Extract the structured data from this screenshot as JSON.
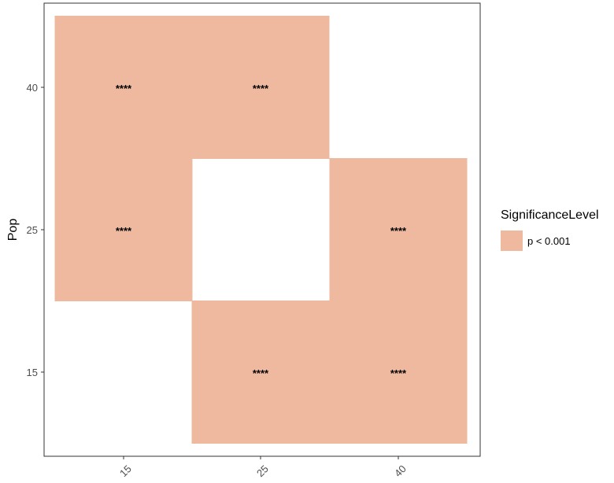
{
  "chart_data": {
    "type": "heatmap",
    "x_categories": [
      "15",
      "25",
      "40"
    ],
    "y_categories": [
      "15",
      "25",
      "40"
    ],
    "xlabel": "",
    "ylabel": "Pop",
    "cells": [
      {
        "x": "15",
        "y": "40",
        "label": "****",
        "level": "p < 0.001"
      },
      {
        "x": "25",
        "y": "40",
        "label": "****",
        "level": "p < 0.001"
      },
      {
        "x": "15",
        "y": "25",
        "label": "****",
        "level": "p < 0.001"
      },
      {
        "x": "40",
        "y": "25",
        "label": "****",
        "level": "p < 0.001"
      },
      {
        "x": "25",
        "y": "15",
        "label": "****",
        "level": "p < 0.001"
      },
      {
        "x": "40",
        "y": "15",
        "label": "****",
        "level": "p < 0.001"
      }
    ],
    "legend": {
      "title": "SignificanceLevel",
      "position": "right",
      "entries": [
        {
          "label": "p < 0.001",
          "color": "#efb9a0"
        }
      ]
    },
    "grid": false
  },
  "colors": {
    "fill": "#efb9a0",
    "panel_border": "#333333",
    "tick_text": "#4d4d4d"
  }
}
